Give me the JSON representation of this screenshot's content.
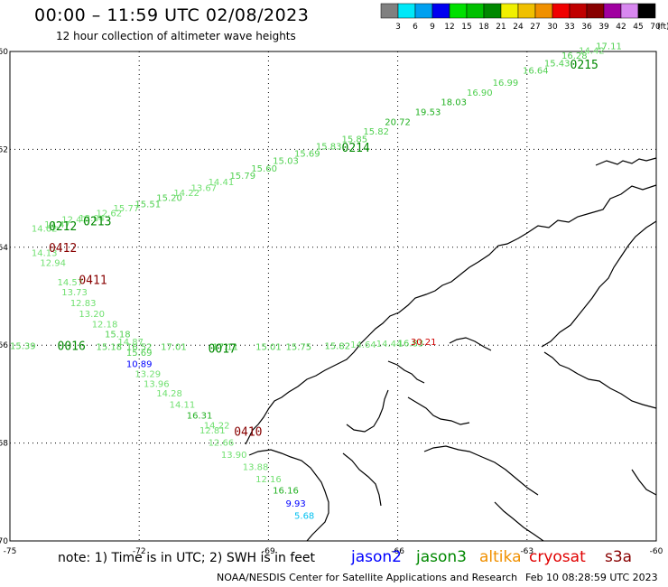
{
  "header": {
    "title": "00:00 – 11:59 UTC 02/08/2023",
    "subtitle": "12 hour collection of altimeter wave heights"
  },
  "colorbar": {
    "unit": "(ft)",
    "bins": [
      {
        "label": "3",
        "color": "#808080"
      },
      {
        "label": "6",
        "color": "#00e8f8"
      },
      {
        "label": "9",
        "color": "#00a0f0"
      },
      {
        "label": "12",
        "color": "#0000f0"
      },
      {
        "label": "15",
        "color": "#00e000"
      },
      {
        "label": "18",
        "color": "#00c000"
      },
      {
        "label": "21",
        "color": "#008800"
      },
      {
        "label": "24",
        "color": "#f0f000"
      },
      {
        "label": "27",
        "color": "#f0c000"
      },
      {
        "label": "30",
        "color": "#f09000"
      },
      {
        "label": "33",
        "color": "#f00000"
      },
      {
        "label": "36",
        "color": "#c00000"
      },
      {
        "label": "39",
        "color": "#880000"
      },
      {
        "label": "42",
        "color": "#a000a0"
      },
      {
        "label": "45",
        "color": "#d888f0"
      },
      {
        "label": "70",
        "color": "#000000"
      }
    ]
  },
  "map": {
    "lon_labels": [
      "-75",
      "-72",
      "-69",
      "-66",
      "-63",
      "-60"
    ],
    "lat_labels": [
      "-60",
      "-62",
      "-64",
      "-66",
      "-68",
      "-70"
    ],
    "tracks": [
      {
        "name": "NE track",
        "obs": [
          {
            "lon": -74.5,
            "lat": -63.68,
            "t": "14.62",
            "c": "#70e070"
          },
          {
            "lon": -74.2,
            "lat": -63.6,
            "t": "13.47",
            "c": "#70e070"
          },
          {
            "lon": -73.8,
            "lat": -63.5,
            "t": "12.47",
            "c": "#70e070"
          },
          {
            "lon": -73.4,
            "lat": -63.47,
            "t": "13.04",
            "c": "#70e070"
          },
          {
            "lon": -73.0,
            "lat": -63.37,
            "t": "12.62",
            "c": "#70e070"
          },
          {
            "lon": -72.6,
            "lat": -63.27,
            "t": "15.77",
            "c": "#70e070"
          },
          {
            "lon": -72.1,
            "lat": -63.18,
            "t": "15.51",
            "c": "#50d050"
          },
          {
            "lon": -71.6,
            "lat": -63.05,
            "t": "15.20",
            "c": "#50d050"
          },
          {
            "lon": -71.2,
            "lat": -62.95,
            "t": "14.22",
            "c": "#70e070"
          },
          {
            "lon": -70.8,
            "lat": -62.85,
            "t": "13.67",
            "c": "#70e070"
          },
          {
            "lon": -70.4,
            "lat": -62.73,
            "t": "14.41",
            "c": "#70e070"
          },
          {
            "lon": -69.9,
            "lat": -62.6,
            "t": "15.79",
            "c": "#50d050"
          },
          {
            "lon": -69.4,
            "lat": -62.45,
            "t": "15.60",
            "c": "#50d050"
          },
          {
            "lon": -68.9,
            "lat": -62.3,
            "t": "15.03",
            "c": "#50d050"
          },
          {
            "lon": -68.4,
            "lat": -62.15,
            "t": "15.69",
            "c": "#50d050"
          },
          {
            "lon": -67.9,
            "lat": -62.0,
            "t": "15.83",
            "c": "#50d050"
          },
          {
            "lon": -67.3,
            "lat": -61.85,
            "t": "15.85",
            "c": "#50d050"
          },
          {
            "lon": -66.8,
            "lat": -61.7,
            "t": "15.82",
            "c": "#50d050"
          },
          {
            "lon": -66.3,
            "lat": -61.5,
            "t": "20.72",
            "c": "#20b020"
          },
          {
            "lon": -65.6,
            "lat": -61.3,
            "t": "19.53",
            "c": "#20b020"
          },
          {
            "lon": -65.0,
            "lat": -61.1,
            "t": "18.03",
            "c": "#20b020"
          },
          {
            "lon": -64.4,
            "lat": -60.9,
            "t": "16.90",
            "c": "#50d050"
          },
          {
            "lon": -63.8,
            "lat": -60.7,
            "t": "16.99",
            "c": "#50d050"
          },
          {
            "lon": -63.1,
            "lat": -60.45,
            "t": "16.64",
            "c": "#50d050"
          },
          {
            "lon": -62.6,
            "lat": -60.3,
            "t": "15.43",
            "c": "#50d050"
          },
          {
            "lon": -62.2,
            "lat": -60.15,
            "t": "16.28",
            "c": "#50d050"
          },
          {
            "lon": -61.8,
            "lat": -60.05,
            "t": "14.42",
            "c": "#70e070"
          },
          {
            "lon": -61.4,
            "lat": -59.95,
            "t": "17.11",
            "c": "#50d050"
          }
        ]
      },
      {
        "name": "E track",
        "obs": [
          {
            "lon": -75.0,
            "lat": -66.08,
            "t": "15.39",
            "c": "#50d050"
          },
          {
            "lon": -73.0,
            "lat": -66.1,
            "t": "15.18",
            "c": "#50d050"
          },
          {
            "lon": -72.3,
            "lat": -66.1,
            "t": "16.52",
            "c": "#50d050"
          },
          {
            "lon": -71.5,
            "lat": -66.1,
            "t": "17.01",
            "c": "#50d050"
          },
          {
            "lon": -70.3,
            "lat": -66.1,
            "t": "17.11",
            "c": "#50d050"
          },
          {
            "lon": -69.3,
            "lat": -66.1,
            "t": "15.01",
            "c": "#50d050"
          },
          {
            "lon": -68.6,
            "lat": -66.1,
            "t": "15.75",
            "c": "#50d050"
          },
          {
            "lon": -67.7,
            "lat": -66.08,
            "t": "15.82",
            "c": "#50d050"
          },
          {
            "lon": -67.1,
            "lat": -66.05,
            "t": "14.64",
            "c": "#70e070"
          },
          {
            "lon": -66.5,
            "lat": -66.03,
            "t": "14.44",
            "c": "#70e070"
          },
          {
            "lon": -66.0,
            "lat": -66.02,
            "t": "16.83",
            "c": "#50d050"
          },
          {
            "lon": -65.7,
            "lat": -66.0,
            "t": "30.21",
            "c": "#d00000"
          }
        ]
      },
      {
        "name": "SE track",
        "obs": [
          {
            "lon": -74.5,
            "lat": -64.18,
            "t": "14.13",
            "c": "#70e070"
          },
          {
            "lon": -74.3,
            "lat": -64.38,
            "t": "12.94",
            "c": "#70e070"
          },
          {
            "lon": -73.9,
            "lat": -64.78,
            "t": "14.57",
            "c": "#70e070"
          },
          {
            "lon": -73.8,
            "lat": -64.98,
            "t": "13.73",
            "c": "#70e070"
          },
          {
            "lon": -73.6,
            "lat": -65.2,
            "t": "12.83",
            "c": "#70e070"
          },
          {
            "lon": -73.4,
            "lat": -65.42,
            "t": "13.20",
            "c": "#70e070"
          },
          {
            "lon": -73.1,
            "lat": -65.64,
            "t": "12.18",
            "c": "#70e070"
          },
          {
            "lon": -72.8,
            "lat": -65.84,
            "t": "15.18",
            "c": "#50d050"
          },
          {
            "lon": -72.5,
            "lat": -66.0,
            "t": "14.87",
            "c": "#70e070"
          },
          {
            "lon": -72.3,
            "lat": -66.22,
            "t": "15.69",
            "c": "#50d050"
          },
          {
            "lon": -72.3,
            "lat": -66.45,
            "t": "10.89",
            "c": "#0000ff"
          },
          {
            "lon": -72.1,
            "lat": -66.65,
            "t": "13.29",
            "c": "#70e070"
          },
          {
            "lon": -71.9,
            "lat": -66.85,
            "t": "13.96",
            "c": "#70e070"
          },
          {
            "lon": -71.6,
            "lat": -67.05,
            "t": "14.28",
            "c": "#70e070"
          },
          {
            "lon": -71.3,
            "lat": -67.28,
            "t": "14.11",
            "c": "#70e070"
          },
          {
            "lon": -70.9,
            "lat": -67.5,
            "t": "16.31",
            "c": "#20b020"
          },
          {
            "lon": -70.5,
            "lat": -67.7,
            "t": "14.22",
            "c": "#70e070"
          },
          {
            "lon": -70.6,
            "lat": -67.8,
            "t": "12.81",
            "c": "#70e070"
          },
          {
            "lon": -70.4,
            "lat": -68.05,
            "t": "12.66",
            "c": "#70e070"
          },
          {
            "lon": -70.1,
            "lat": -68.3,
            "t": "13.90",
            "c": "#70e070"
          },
          {
            "lon": -69.6,
            "lat": -68.55,
            "t": "13.88",
            "c": "#70e070"
          },
          {
            "lon": -69.3,
            "lat": -68.8,
            "t": "12.16",
            "c": "#70e070"
          },
          {
            "lon": -68.9,
            "lat": -69.03,
            "t": "16.16",
            "c": "#20b020"
          },
          {
            "lon": -68.6,
            "lat": -69.3,
            "t": "9.93",
            "c": "#0000ff"
          },
          {
            "lon": -68.4,
            "lat": -69.55,
            "t": "5.68",
            "c": "#00c0f0"
          }
        ]
      }
    ],
    "pass_labels": [
      {
        "t": "0212",
        "lon": -74.1,
        "lat": -63.65,
        "c": "#008800"
      },
      {
        "t": "0213",
        "lon": -73.3,
        "lat": -63.55,
        "c": "#008800"
      },
      {
        "t": "0214",
        "lon": -67.3,
        "lat": -62.05,
        "c": "#008800"
      },
      {
        "t": "0215",
        "lon": -62.0,
        "lat": -60.35,
        "c": "#008800"
      },
      {
        "t": "0412",
        "lon": -74.1,
        "lat": -64.1,
        "c": "#880000"
      },
      {
        "t": "0411",
        "lon": -73.4,
        "lat": -64.75,
        "c": "#880000"
      },
      {
        "t": "0410",
        "lon": -69.8,
        "lat": -67.85,
        "c": "#880000"
      },
      {
        "t": "0016",
        "lon": -73.9,
        "lat": -66.1,
        "c": "#008800"
      },
      {
        "t": "0017",
        "lon": -70.4,
        "lat": -66.15,
        "c": "#008800"
      }
    ]
  },
  "footer": {
    "note": "note: 1) Time is in UTC; 2) SWH is in feet",
    "satellites": [
      {
        "name": "jason2",
        "color": "#0000ff"
      },
      {
        "name": "jason3",
        "color": "#008800"
      },
      {
        "name": "altika",
        "color": "#f09000"
      },
      {
        "name": "cryosat",
        "color": "#e00000"
      },
      {
        "name": "s3a",
        "color": "#880000"
      }
    ],
    "credit": "NOAA/NESDIS Center for Satellite Applications and Research",
    "timestamp": "Feb 10 08:28:59 UTC 2023"
  }
}
